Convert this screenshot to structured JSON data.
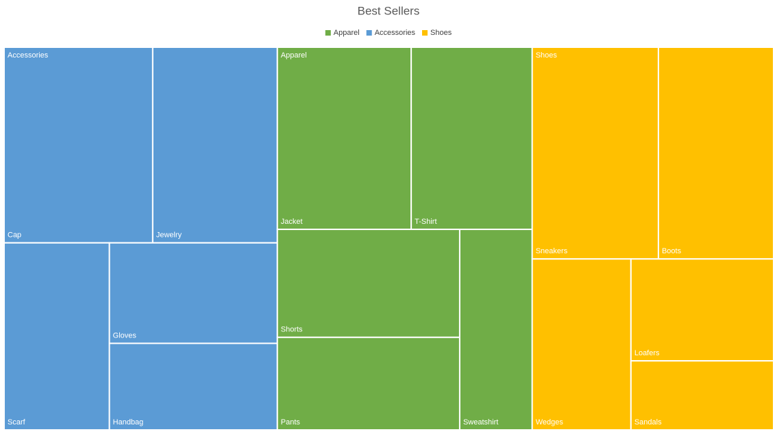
{
  "chart_data": {
    "type": "treemap",
    "title": "Best Sellers",
    "series": [
      {
        "name": "Apparel",
        "color": "#70ad47",
        "labels": [
          "Jacket",
          "T-Shirt",
          "Shorts",
          "Pants",
          "Sweatshirt"
        ],
        "values": [
          52,
          47,
          42,
          36,
          31
        ]
      },
      {
        "name": "Accessories",
        "color": "#5b9bd5",
        "labels": [
          "Cap",
          "Jewelry",
          "Scarf",
          "Gloves",
          "Handbag"
        ],
        "values": [
          62,
          52,
          42,
          36,
          31
        ]
      },
      {
        "name": "Shoes",
        "color": "#ffc000",
        "labels": [
          "Sneakers",
          "Boots",
          "Wedges",
          "Loafers",
          "Sandals"
        ],
        "values": [
          57,
          52,
          36,
          31,
          21
        ]
      }
    ]
  }
}
